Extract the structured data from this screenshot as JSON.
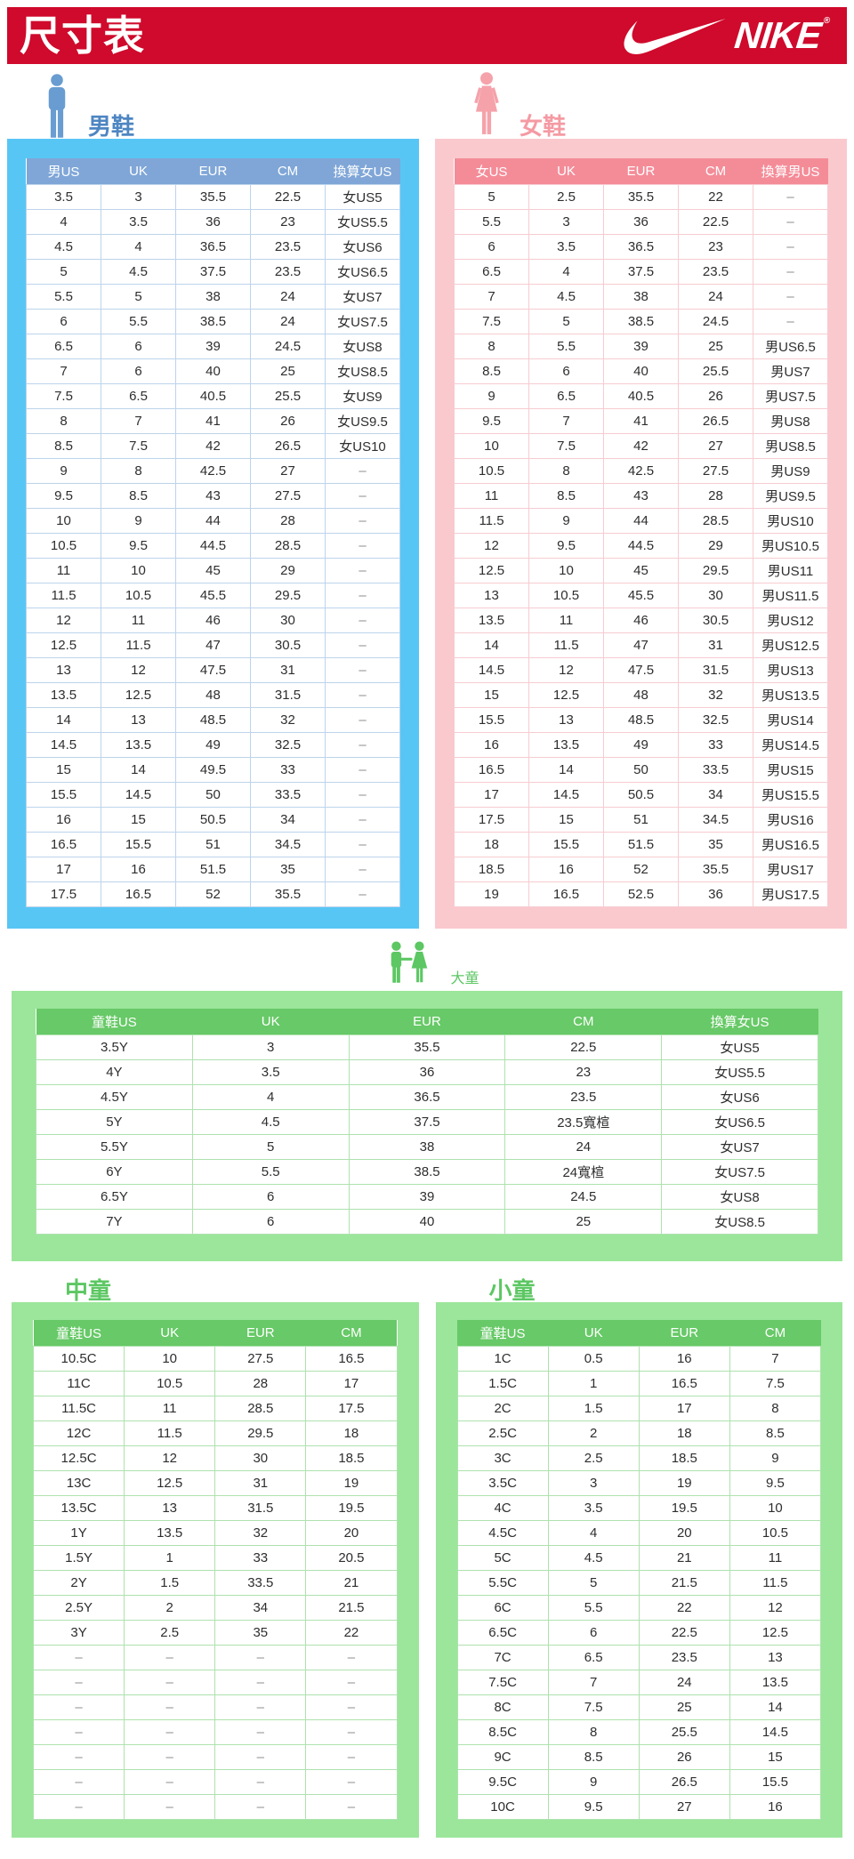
{
  "page": {
    "title": "尺寸表",
    "brand": "NIKE"
  },
  "colors": {
    "nike_red": "#cf0a2c",
    "men_panel": "#58c6f5",
    "men_header": "#7fa6d7",
    "men_label": "#4e86c2",
    "women_panel": "#fac9ce",
    "women_header": "#f48c98",
    "women_label": "#f59aa3",
    "kids_panel": "#9be69b",
    "kids_header": "#67c967",
    "kids_label": "#5cc763"
  },
  "sections": {
    "men": {
      "label": "男鞋",
      "headers": [
        "男US",
        "UK",
        "EUR",
        "CM",
        "換算女US"
      ],
      "rows": [
        [
          "3.5",
          "3",
          "35.5",
          "22.5",
          "女US5"
        ],
        [
          "4",
          "3.5",
          "36",
          "23",
          "女US5.5"
        ],
        [
          "4.5",
          "4",
          "36.5",
          "23.5",
          "女US6"
        ],
        [
          "5",
          "4.5",
          "37.5",
          "23.5",
          "女US6.5"
        ],
        [
          "5.5",
          "5",
          "38",
          "24",
          "女US7"
        ],
        [
          "6",
          "5.5",
          "38.5",
          "24",
          "女US7.5"
        ],
        [
          "6.5",
          "6",
          "39",
          "24.5",
          "女US8"
        ],
        [
          "7",
          "6",
          "40",
          "25",
          "女US8.5"
        ],
        [
          "7.5",
          "6.5",
          "40.5",
          "25.5",
          "女US9"
        ],
        [
          "8",
          "7",
          "41",
          "26",
          "女US9.5"
        ],
        [
          "8.5",
          "7.5",
          "42",
          "26.5",
          "女US10"
        ],
        [
          "9",
          "8",
          "42.5",
          "27",
          "–"
        ],
        [
          "9.5",
          "8.5",
          "43",
          "27.5",
          "–"
        ],
        [
          "10",
          "9",
          "44",
          "28",
          "–"
        ],
        [
          "10.5",
          "9.5",
          "44.5",
          "28.5",
          "–"
        ],
        [
          "11",
          "10",
          "45",
          "29",
          "–"
        ],
        [
          "11.5",
          "10.5",
          "45.5",
          "29.5",
          "–"
        ],
        [
          "12",
          "11",
          "46",
          "30",
          "–"
        ],
        [
          "12.5",
          "11.5",
          "47",
          "30.5",
          "–"
        ],
        [
          "13",
          "12",
          "47.5",
          "31",
          "–"
        ],
        [
          "13.5",
          "12.5",
          "48",
          "31.5",
          "–"
        ],
        [
          "14",
          "13",
          "48.5",
          "32",
          "–"
        ],
        [
          "14.5",
          "13.5",
          "49",
          "32.5",
          "–"
        ],
        [
          "15",
          "14",
          "49.5",
          "33",
          "–"
        ],
        [
          "15.5",
          "14.5",
          "50",
          "33.5",
          "–"
        ],
        [
          "16",
          "15",
          "50.5",
          "34",
          "–"
        ],
        [
          "16.5",
          "15.5",
          "51",
          "34.5",
          "–"
        ],
        [
          "17",
          "16",
          "51.5",
          "35",
          "–"
        ],
        [
          "17.5",
          "16.5",
          "52",
          "35.5",
          "–"
        ]
      ]
    },
    "women": {
      "label": "女鞋",
      "headers": [
        "女US",
        "UK",
        "EUR",
        "CM",
        "換算男US"
      ],
      "rows": [
        [
          "5",
          "2.5",
          "35.5",
          "22",
          "–"
        ],
        [
          "5.5",
          "3",
          "36",
          "22.5",
          "–"
        ],
        [
          "6",
          "3.5",
          "36.5",
          "23",
          "–"
        ],
        [
          "6.5",
          "4",
          "37.5",
          "23.5",
          "–"
        ],
        [
          "7",
          "4.5",
          "38",
          "24",
          "–"
        ],
        [
          "7.5",
          "5",
          "38.5",
          "24.5",
          "–"
        ],
        [
          "8",
          "5.5",
          "39",
          "25",
          "男US6.5"
        ],
        [
          "8.5",
          "6",
          "40",
          "25.5",
          "男US7"
        ],
        [
          "9",
          "6.5",
          "40.5",
          "26",
          "男US7.5"
        ],
        [
          "9.5",
          "7",
          "41",
          "26.5",
          "男US8"
        ],
        [
          "10",
          "7.5",
          "42",
          "27",
          "男US8.5"
        ],
        [
          "10.5",
          "8",
          "42.5",
          "27.5",
          "男US9"
        ],
        [
          "11",
          "8.5",
          "43",
          "28",
          "男US9.5"
        ],
        [
          "11.5",
          "9",
          "44",
          "28.5",
          "男US10"
        ],
        [
          "12",
          "9.5",
          "44.5",
          "29",
          "男US10.5"
        ],
        [
          "12.5",
          "10",
          "45",
          "29.5",
          "男US11"
        ],
        [
          "13",
          "10.5",
          "45.5",
          "30",
          "男US11.5"
        ],
        [
          "13.5",
          "11",
          "46",
          "30.5",
          "男US12"
        ],
        [
          "14",
          "11.5",
          "47",
          "31",
          "男US12.5"
        ],
        [
          "14.5",
          "12",
          "47.5",
          "31.5",
          "男US13"
        ],
        [
          "15",
          "12.5",
          "48",
          "32",
          "男US13.5"
        ],
        [
          "15.5",
          "13",
          "48.5",
          "32.5",
          "男US14"
        ],
        [
          "16",
          "13.5",
          "49",
          "33",
          "男US14.5"
        ],
        [
          "16.5",
          "14",
          "50",
          "33.5",
          "男US15"
        ],
        [
          "17",
          "14.5",
          "50.5",
          "34",
          "男US15.5"
        ],
        [
          "17.5",
          "15",
          "51",
          "34.5",
          "男US16"
        ],
        [
          "18",
          "15.5",
          "51.5",
          "35",
          "男US16.5"
        ],
        [
          "18.5",
          "16",
          "52",
          "35.5",
          "男US17"
        ],
        [
          "19",
          "16.5",
          "52.5",
          "36",
          "男US17.5"
        ]
      ]
    },
    "big_kids": {
      "label": "大童",
      "headers": [
        "童鞋US",
        "UK",
        "EUR",
        "CM",
        "換算女US"
      ],
      "rows": [
        [
          "3.5Y",
          "3",
          "35.5",
          "22.5",
          "女US5"
        ],
        [
          "4Y",
          "3.5",
          "36",
          "23",
          "女US5.5"
        ],
        [
          "4.5Y",
          "4",
          "36.5",
          "23.5",
          "女US6"
        ],
        [
          "5Y",
          "4.5",
          "37.5",
          "23.5寬楦",
          "女US6.5"
        ],
        [
          "5.5Y",
          "5",
          "38",
          "24",
          "女US7"
        ],
        [
          "6Y",
          "5.5",
          "38.5",
          "24寬楦",
          "女US7.5"
        ],
        [
          "6.5Y",
          "6",
          "39",
          "24.5",
          "女US8"
        ],
        [
          "7Y",
          "6",
          "40",
          "25",
          "女US8.5"
        ]
      ]
    },
    "mid_kids": {
      "label": "中童",
      "headers": [
        "童鞋US",
        "UK",
        "EUR",
        "CM"
      ],
      "rows": [
        [
          "10.5C",
          "10",
          "27.5",
          "16.5"
        ],
        [
          "11C",
          "10.5",
          "28",
          "17"
        ],
        [
          "11.5C",
          "11",
          "28.5",
          "17.5"
        ],
        [
          "12C",
          "11.5",
          "29.5",
          "18"
        ],
        [
          "12.5C",
          "12",
          "30",
          "18.5"
        ],
        [
          "13C",
          "12.5",
          "31",
          "19"
        ],
        [
          "13.5C",
          "13",
          "31.5",
          "19.5"
        ],
        [
          "1Y",
          "13.5",
          "32",
          "20"
        ],
        [
          "1.5Y",
          "1",
          "33",
          "20.5"
        ],
        [
          "2Y",
          "1.5",
          "33.5",
          "21"
        ],
        [
          "2.5Y",
          "2",
          "34",
          "21.5"
        ],
        [
          "3Y",
          "2.5",
          "35",
          "22"
        ],
        [
          "–",
          "–",
          "–",
          "–"
        ],
        [
          "–",
          "–",
          "–",
          "–"
        ],
        [
          "–",
          "–",
          "–",
          "–"
        ],
        [
          "–",
          "–",
          "–",
          "–"
        ],
        [
          "–",
          "–",
          "–",
          "–"
        ],
        [
          "–",
          "–",
          "–",
          "–"
        ],
        [
          "–",
          "–",
          "–",
          "–"
        ]
      ]
    },
    "small_kids": {
      "label": "小童",
      "headers": [
        "童鞋US",
        "UK",
        "EUR",
        "CM"
      ],
      "rows": [
        [
          "1C",
          "0.5",
          "16",
          "7"
        ],
        [
          "1.5C",
          "1",
          "16.5",
          "7.5"
        ],
        [
          "2C",
          "1.5",
          "17",
          "8"
        ],
        [
          "2.5C",
          "2",
          "18",
          "8.5"
        ],
        [
          "3C",
          "2.5",
          "18.5",
          "9"
        ],
        [
          "3.5C",
          "3",
          "19",
          "9.5"
        ],
        [
          "4C",
          "3.5",
          "19.5",
          "10"
        ],
        [
          "4.5C",
          "4",
          "20",
          "10.5"
        ],
        [
          "5C",
          "4.5",
          "21",
          "11"
        ],
        [
          "5.5C",
          "5",
          "21.5",
          "11.5"
        ],
        [
          "6C",
          "5.5",
          "22",
          "12"
        ],
        [
          "6.5C",
          "6",
          "22.5",
          "12.5"
        ],
        [
          "7C",
          "6.5",
          "23.5",
          "13"
        ],
        [
          "7.5C",
          "7",
          "24",
          "13.5"
        ],
        [
          "8C",
          "7.5",
          "25",
          "14"
        ],
        [
          "8.5C",
          "8",
          "25.5",
          "14.5"
        ],
        [
          "9C",
          "8.5",
          "26",
          "15"
        ],
        [
          "9.5C",
          "9",
          "26.5",
          "15.5"
        ],
        [
          "10C",
          "9.5",
          "27",
          "16"
        ]
      ]
    }
  }
}
